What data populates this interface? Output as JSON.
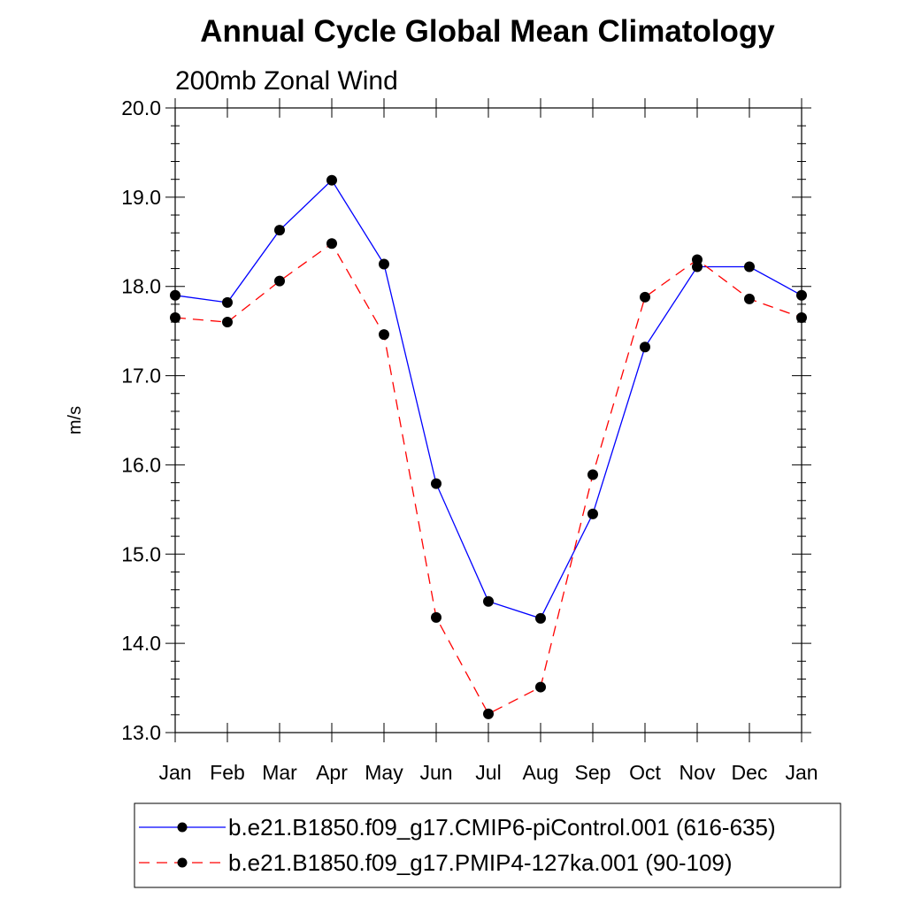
{
  "chart_data": {
    "type": "line",
    "title": "Annual Cycle Global Mean Climatology",
    "subtitle": "200mb Zonal Wind",
    "xlabel": "",
    "ylabel": "m/s",
    "categories": [
      "Jan",
      "Feb",
      "Mar",
      "Apr",
      "May",
      "Jun",
      "Jul",
      "Aug",
      "Sep",
      "Oct",
      "Nov",
      "Dec",
      "Jan"
    ],
    "ylim": [
      13.0,
      20.0
    ],
    "yticks": [
      "13.0",
      "14.0",
      "15.0",
      "16.0",
      "17.0",
      "18.0",
      "19.0",
      "20.0"
    ],
    "grid": false,
    "legend_position": "bottom",
    "series": [
      {
        "name": "b.e21.B1850.f09_g17.CMIP6-piControl.001 (616-635)",
        "color": "#0000ff",
        "line_style": "solid",
        "marker": "filled-circle",
        "values": [
          17.9,
          17.82,
          18.63,
          19.19,
          18.25,
          15.79,
          14.47,
          14.28,
          15.45,
          17.32,
          18.22,
          18.22,
          17.9
        ]
      },
      {
        "name": "b.e21.B1850.f09_g17.PMIP4-127ka.001 (90-109)",
        "color": "#ff0000",
        "line_style": "dashed",
        "marker": "filled-circle",
        "values": [
          17.65,
          17.6,
          18.06,
          18.48,
          17.46,
          14.29,
          13.21,
          13.51,
          15.89,
          17.88,
          18.3,
          17.86,
          17.65
        ]
      }
    ]
  }
}
